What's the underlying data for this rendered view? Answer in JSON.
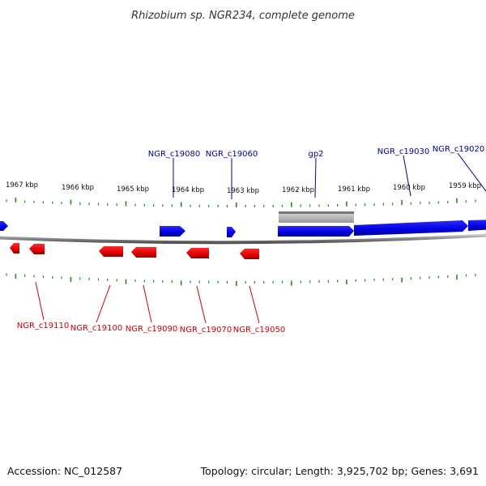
{
  "title": "Rhizobium sp. NGR234, complete genome",
  "footer": {
    "accession": "Accession: NC_012587",
    "topology": "Topology: circular; Length: 3,925,702 bp; Genes: 3,691"
  },
  "colors": {
    "forward_gene": "#0000ee",
    "reverse_gene": "#ee0000",
    "pseudo_gene": "#aaaaaa",
    "backbone": "#888888",
    "tick": "#228822",
    "forward_label": "#000099",
    "reverse_label": "#cc0000"
  },
  "ruler": {
    "unit": "kbp",
    "labels": [
      "1967 kbp",
      "1966 kbp",
      "1965 kbp",
      "1964 kbp",
      "1963 kbp",
      "1962 kbp",
      "1961 kbp",
      "1960 kbp",
      "1959 kbp"
    ]
  },
  "genes": {
    "forward_labels": [
      "NGR_c19080",
      "NGR_c19060",
      "gp2",
      "NGR_c19030",
      "NGR_c19020"
    ],
    "reverse_labels": [
      "NGR_c19110",
      "NGR_c19100",
      "NGR_c19090",
      "NGR_c19070",
      "NGR_c19050"
    ]
  }
}
